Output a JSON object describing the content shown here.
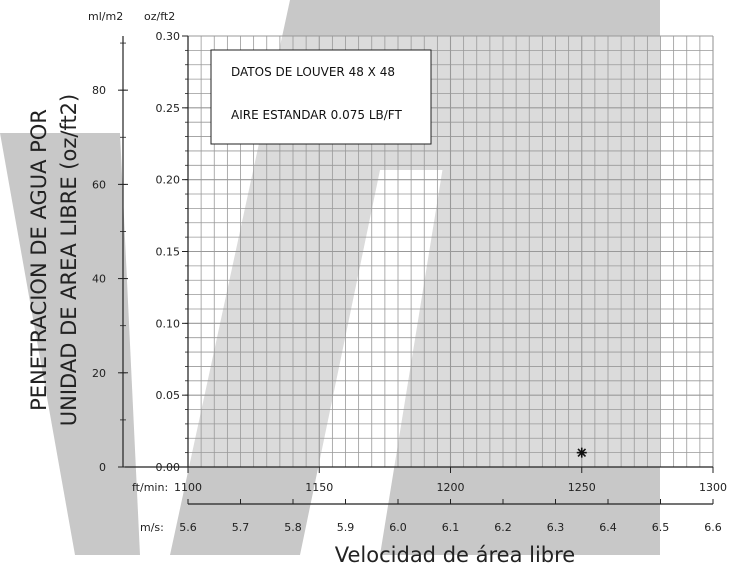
{
  "chart_data": {
    "type": "scatter",
    "title": "",
    "annotations": [
      "DATOS DE LOUVER 48 X 48",
      "AIRE ESTANDAR 0.075 LB/FT"
    ],
    "ylabel_lines": [
      "PENETRACION DE AGUA POR",
      "UNIDAD DE AREA LIBRE (oz/ft2)"
    ],
    "xlabel": "Velocidad de área libre",
    "x_unit": "ft/min:",
    "x2_unit": "m/s:",
    "y_unit": "oz/ft2",
    "y2_unit": "ml/m2",
    "xlim": [
      1100,
      1300
    ],
    "ylim": [
      0,
      0.3
    ],
    "x2lim": [
      5.6,
      6.6
    ],
    "y2lim": [
      0,
      91.5
    ],
    "x_ticks": [
      "1100",
      "1150",
      "1200",
      "1250",
      "1300"
    ],
    "x2_ticks": [
      "5.6",
      "5.7",
      "5.8",
      "5.9",
      "6.0",
      "6.1",
      "6.2",
      "6.3",
      "6.4",
      "6.5",
      "6.6"
    ],
    "y_ticks": [
      "0.00",
      "0.05",
      "0.10",
      "0.15",
      "0.20",
      "0.25",
      "0.30"
    ],
    "y2_ticks": [
      "0",
      "20",
      "40",
      "60",
      "80"
    ],
    "grid": true,
    "points": [
      {
        "x": 1250,
        "y": 0.01
      }
    ]
  },
  "colors": {
    "grid": "#999999",
    "axis": "#222222",
    "marker": "#111111",
    "watermark": "#c8c8c8"
  }
}
